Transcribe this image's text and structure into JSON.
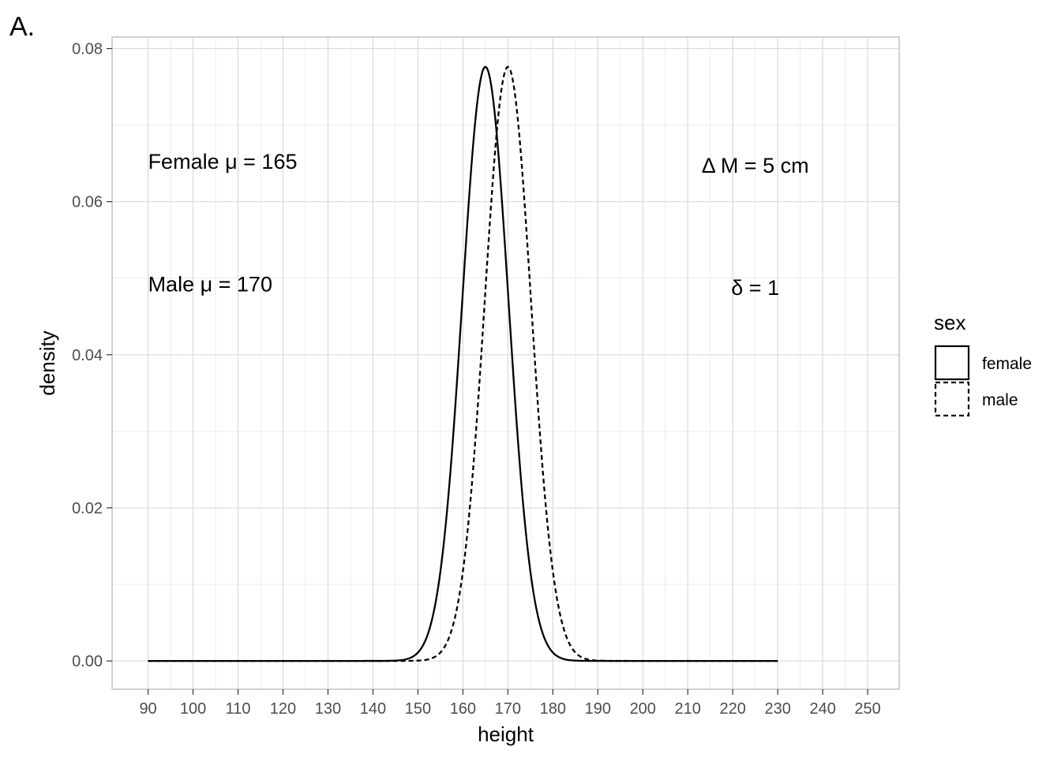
{
  "panel_tag": "A.",
  "chart_data": {
    "type": "line",
    "title": "",
    "xlabel": "height",
    "ylabel": "density",
    "xlim": [
      82,
      257
    ],
    "ylim": [
      -0.0037,
      0.0815
    ],
    "x_ticks": [
      90,
      100,
      110,
      120,
      130,
      140,
      150,
      160,
      170,
      180,
      190,
      200,
      210,
      220,
      230,
      240,
      250
    ],
    "x_tick_labels": [
      "90",
      "100",
      "110",
      "120",
      "130",
      "140",
      "150",
      "160",
      "170",
      "180",
      "190",
      "200",
      "210",
      "220",
      "230",
      "240",
      "250"
    ],
    "y_ticks": [
      0,
      0.02,
      0.04,
      0.06,
      0.08
    ],
    "y_tick_labels": [
      "0.00",
      "0.02",
      "0.04",
      "0.06",
      "0.08"
    ],
    "grid": true,
    "x_range_drawn": [
      90,
      230
    ],
    "series": [
      {
        "name": "female",
        "distribution": "normal",
        "mean": 165,
        "sd": 5.14,
        "linetype": "solid",
        "color": "#000000"
      },
      {
        "name": "male",
        "distribution": "normal",
        "mean": 170,
        "sd": 5.14,
        "linetype": "dashed",
        "color": "#000000"
      }
    ],
    "annotations": [
      {
        "text": "Female μ = 165",
        "x": 90,
        "y": 0.0643
      },
      {
        "text": "Male μ = 170",
        "x": 90,
        "y": 0.0483
      },
      {
        "text": "Δ M = 5 cm",
        "x": 225,
        "y": 0.0638
      },
      {
        "text": "δ = 1",
        "x": 225,
        "y": 0.0478
      }
    ],
    "legend": {
      "title": "sex",
      "position": "right",
      "entries": [
        {
          "label": "female",
          "linetype": "solid"
        },
        {
          "label": "male",
          "linetype": "dashed"
        }
      ]
    }
  },
  "colors": {
    "panel_border": "#b3b3b3",
    "grid_major": "#d9d9d9",
    "grid_minor": "#ececec",
    "tick_text": "#4d4d4d",
    "line": "#000000"
  }
}
